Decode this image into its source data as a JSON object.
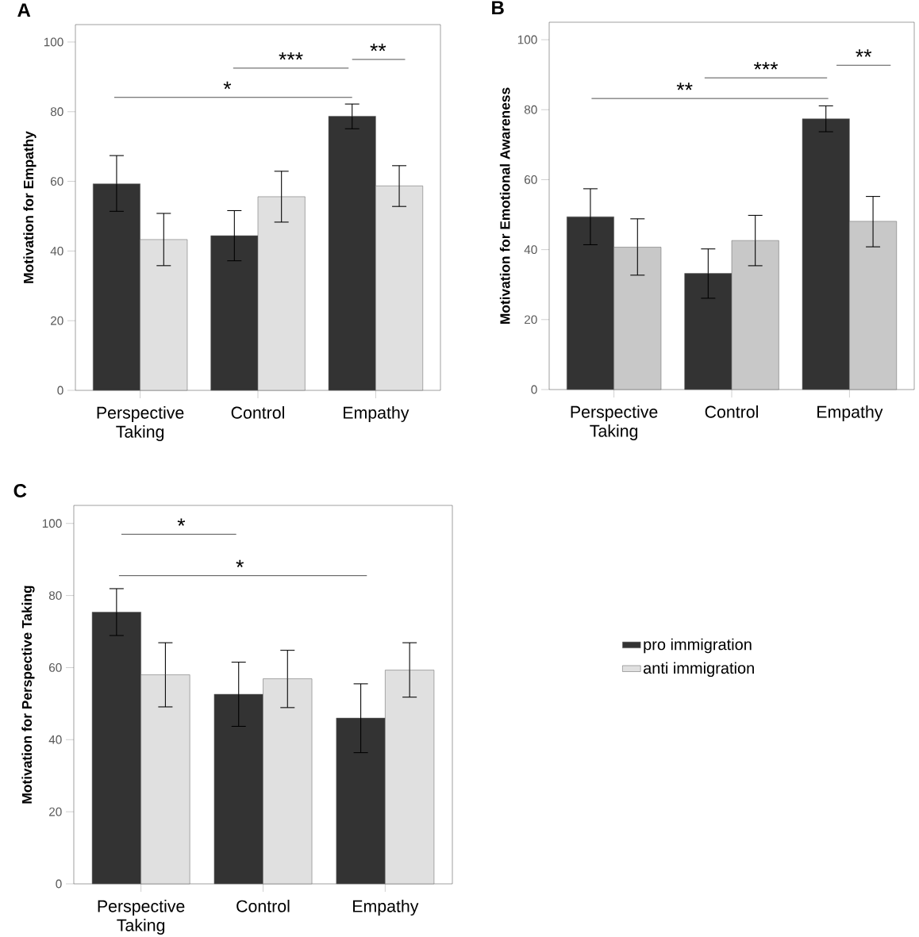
{
  "chart_data": [
    {
      "type": "bar",
      "title": "A",
      "ylabel": "Motivation for Empathy",
      "categories": [
        "Perspective Taking",
        "Control",
        "Empathy"
      ],
      "ylim": [
        0,
        105
      ],
      "yticks": [
        0,
        20,
        40,
        60,
        80,
        100
      ],
      "legend": false,
      "annotations": [
        "**",
        "***",
        "*"
      ],
      "series": [
        {
          "color": "#333333",
          "values": [
            59.3,
            44.4,
            78.7
          ],
          "errors": [
            [
              51.4,
              67.4
            ],
            [
              37.2,
              51.6
            ],
            [
              75.1,
              82.2
            ]
          ]
        },
        {
          "color": "#e0e0e0",
          "values": [
            43.3,
            55.6,
            58.7
          ],
          "errors": [
            [
              35.8,
              50.8
            ],
            [
              48.3,
              62.9
            ],
            [
              52.8,
              64.5
            ]
          ]
        }
      ]
    },
    {
      "type": "bar",
      "title": "B",
      "ylabel": "Motivation for Emotional Awareness",
      "categories": [
        "Perspective Taking",
        "Control",
        "Empathy"
      ],
      "ylim": [
        0,
        105
      ],
      "yticks": [
        0,
        20,
        40,
        60,
        80,
        100
      ],
      "legend": false,
      "annotations": [
        "**",
        "***",
        "**"
      ],
      "series": [
        {
          "color": "#333333",
          "values": [
            49.4,
            33.2,
            77.4
          ],
          "errors": [
            [
              41.4,
              57.4
            ],
            [
              26.1,
              40.2
            ],
            [
              73.7,
              81.1
            ]
          ]
        },
        {
          "color": "#c8c8c8",
          "values": [
            40.7,
            42.6,
            48.1
          ],
          "errors": [
            [
              32.7,
              48.8
            ],
            [
              35.4,
              49.8
            ],
            [
              40.8,
              55.2
            ]
          ]
        }
      ]
    },
    {
      "type": "bar",
      "title": "C",
      "ylabel": "Motivation for Perspective Taking",
      "categories": [
        "Perspective Taking",
        "Control",
        "Empathy"
      ],
      "ylim": [
        0,
        105
      ],
      "yticks": [
        0,
        20,
        40,
        60,
        80,
        100
      ],
      "legend": "right",
      "annotations": [
        "*",
        "*"
      ],
      "series": [
        {
          "name": "pro immigration",
          "color": "#333333",
          "values": [
            75.4,
            52.6,
            46.0
          ],
          "errors": [
            [
              68.9,
              81.9
            ],
            [
              43.7,
              61.5
            ],
            [
              36.4,
              55.5
            ]
          ]
        },
        {
          "name": "anti immigration",
          "color": "#e0e0e0",
          "values": [
            58.0,
            56.9,
            59.3
          ],
          "errors": [
            [
              49.1,
              66.9
            ],
            [
              48.9,
              64.8
            ],
            [
              51.8,
              66.9
            ]
          ]
        }
      ]
    }
  ]
}
